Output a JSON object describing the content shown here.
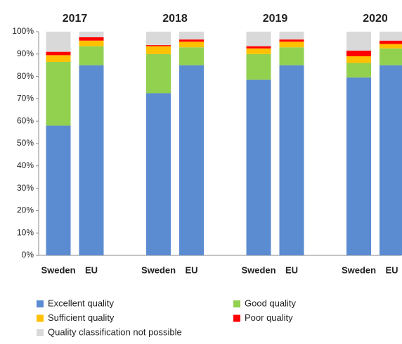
{
  "chart_data": {
    "type": "stacked_bar",
    "groups": [
      "2017",
      "2018",
      "2019",
      "2020"
    ],
    "categories": [
      "Sweden",
      "EU",
      "Sweden",
      "EU",
      "Sweden",
      "EU",
      "Sweden",
      "EU"
    ],
    "series": [
      {
        "name": "Excellent quality",
        "color": "#5b8bd0",
        "values": [
          58,
          85,
          72.5,
          85,
          78.5,
          85,
          79.5,
          85
        ]
      },
      {
        "name": "Good quality",
        "color": "#92d050",
        "values": [
          28.5,
          8.5,
          17.5,
          8,
          11.5,
          8,
          6.5,
          7.5
        ]
      },
      {
        "name": "Sufficient quality",
        "color": "#ffc000",
        "values": [
          3,
          2.5,
          3.5,
          2.5,
          2.5,
          2.5,
          3,
          2
        ]
      },
      {
        "name": "Poor quality",
        "color": "#ff0000",
        "values": [
          1.5,
          1.5,
          0.5,
          1,
          1,
          1,
          2.5,
          1.5
        ]
      },
      {
        "name": "Quality classification not possible",
        "color": "#d9d9d9",
        "values": [
          9,
          2.5,
          6,
          3.5,
          6.5,
          3.5,
          8.5,
          4
        ]
      }
    ],
    "ylim": [
      0,
      100
    ],
    "yticks": [
      {
        "value": 0,
        "label": "0%"
      },
      {
        "value": 10,
        "label": "10%"
      },
      {
        "value": 20,
        "label": "20%"
      },
      {
        "value": 30,
        "label": "30%"
      },
      {
        "value": 40,
        "label": "40%"
      },
      {
        "value": 50,
        "label": "50%"
      },
      {
        "value": 60,
        "label": "60%"
      },
      {
        "value": 70,
        "label": "70%"
      },
      {
        "value": 80,
        "label": "80%"
      },
      {
        "value": 90,
        "label": "90%"
      },
      {
        "value": 100,
        "label": "100%"
      }
    ],
    "grid": false
  }
}
